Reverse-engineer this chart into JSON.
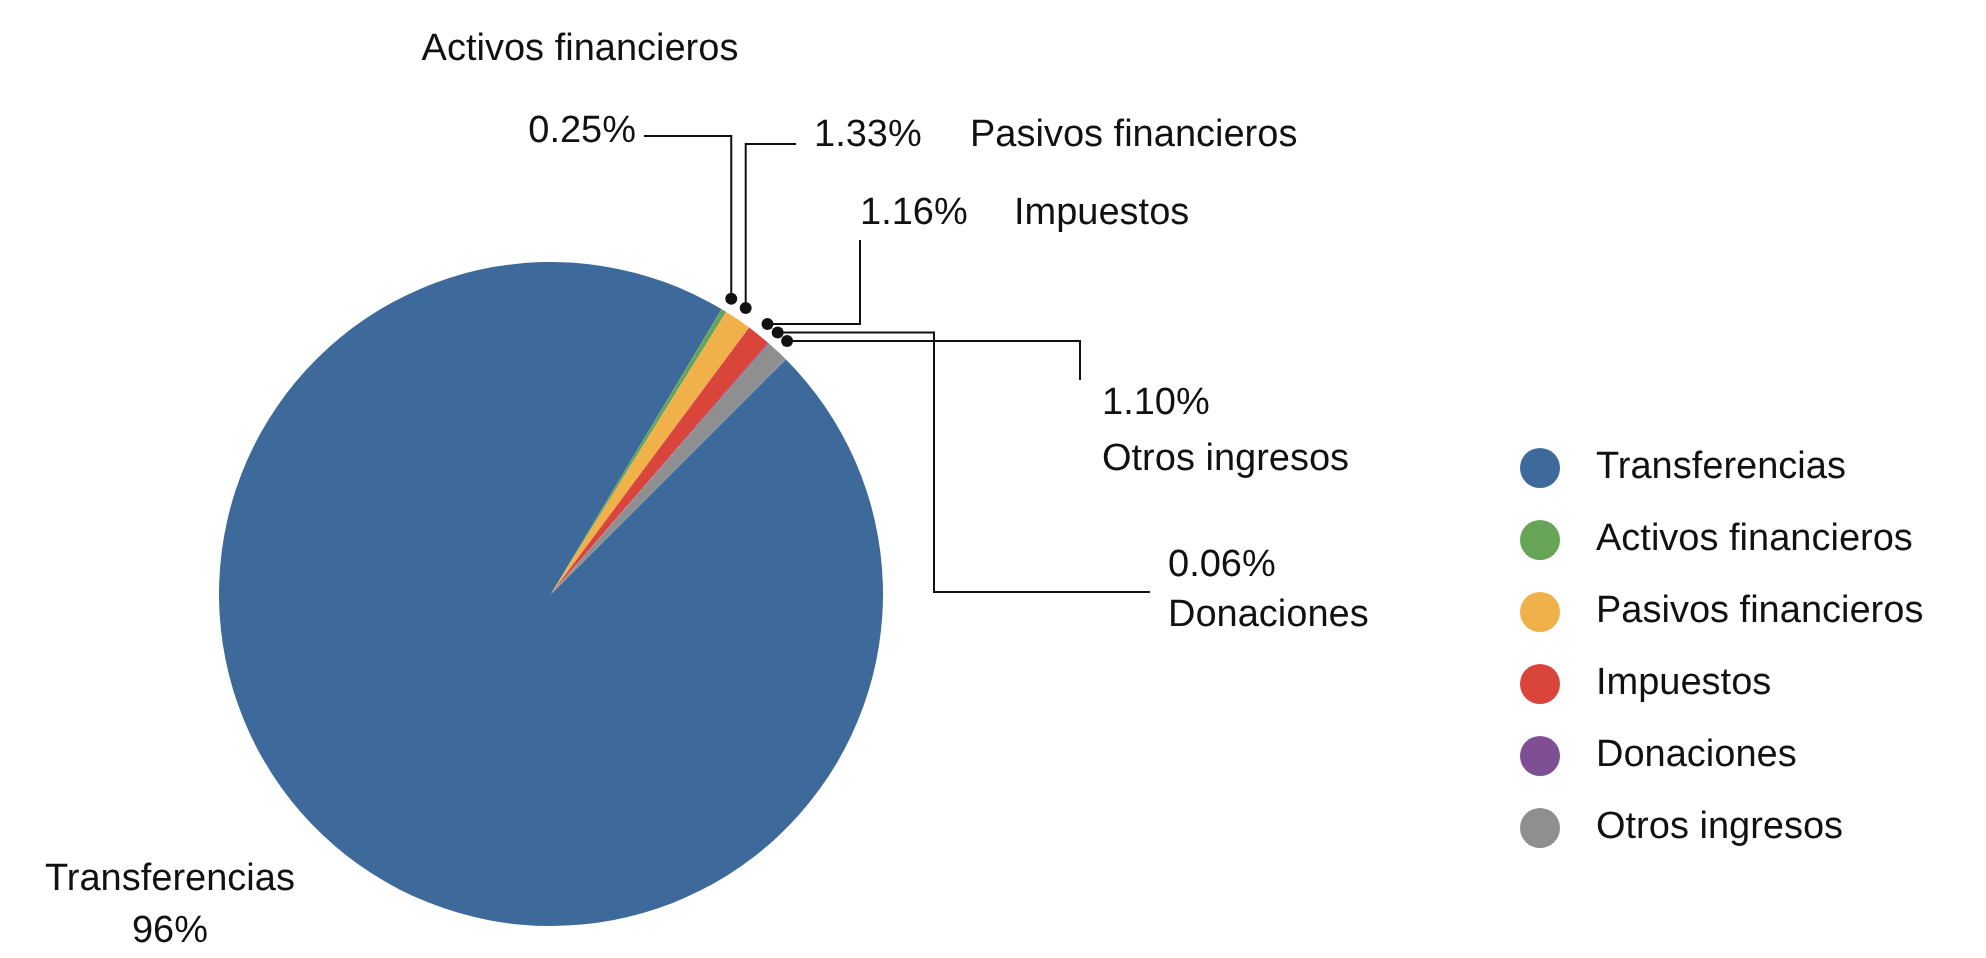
{
  "chart_data": {
    "type": "pie",
    "categories": [
      "Transferencias",
      "Activos financieros",
      "Pasivos financieros",
      "Impuestos",
      "Donaciones",
      "Otros ingresos"
    ],
    "values": [
      96,
      0.25,
      1.33,
      1.16,
      0.06,
      1.1
    ],
    "colors": [
      "#3d6a9b",
      "#66a557",
      "#f0b04a",
      "#d9453b",
      "#7e4f93",
      "#8f8f8f"
    ],
    "value_labels": [
      "96%",
      "0.25%",
      "1.33%",
      "1.16%",
      "0.06%",
      "1.10%"
    ],
    "legend": "right"
  }
}
